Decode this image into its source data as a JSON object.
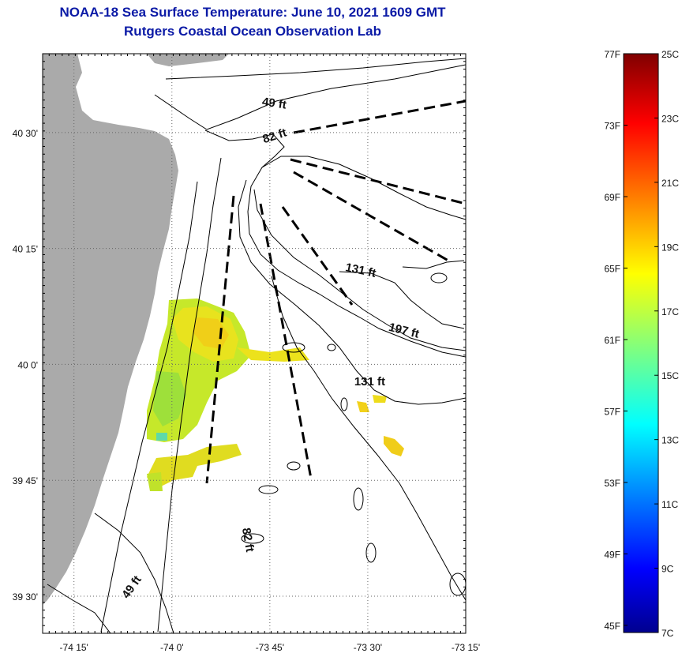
{
  "title": {
    "line1": "NOAA-18 Sea Surface Temperature:  June 10, 2021 1609 GMT",
    "line2": "Rutgers Coastal Ocean Observation Lab"
  },
  "map": {
    "lat_labels": [
      "40 30'",
      "40 15'",
      "40 0'",
      "39 45'",
      "39 30'"
    ],
    "lon_labels": [
      "-74 15'",
      "-74 0'",
      "-73 45'",
      "-73 30'",
      "-73 15'"
    ],
    "lat_range": [
      39.42,
      40.67
    ],
    "lon_range": [
      -74.33,
      -73.25
    ],
    "depth_labels": [
      {
        "text": "49 ft",
        "lat": 40.555,
        "lon": -73.74
      },
      {
        "text": "82 ft",
        "lat": 40.485,
        "lon": -73.735
      },
      {
        "text": "131 ft",
        "lat": 40.195,
        "lon": -73.52
      },
      {
        "text": "197 ft",
        "lat": 40.065,
        "lon": -73.41
      },
      {
        "text": "131 ft",
        "lat": 39.955,
        "lon": -73.495
      },
      {
        "text": "82 ft",
        "lat": 39.62,
        "lon": -73.815
      },
      {
        "text": "49 ft",
        "lat": 39.515,
        "lon": -74.095
      }
    ],
    "colors": {
      "land": "#aaaaaa",
      "contour": "#000000",
      "grid": "#555555"
    }
  },
  "colorbar": {
    "f_labels": [
      "77F",
      "73F",
      "69F",
      "65F",
      "61F",
      "57F",
      "53F",
      "49F",
      "45F"
    ],
    "c_labels": [
      "25C",
      "23C",
      "21C",
      "19C",
      "17C",
      "15C",
      "13C",
      "11C",
      "9C",
      "7C"
    ],
    "range_c": [
      7,
      25
    ],
    "colormap": "jet"
  }
}
